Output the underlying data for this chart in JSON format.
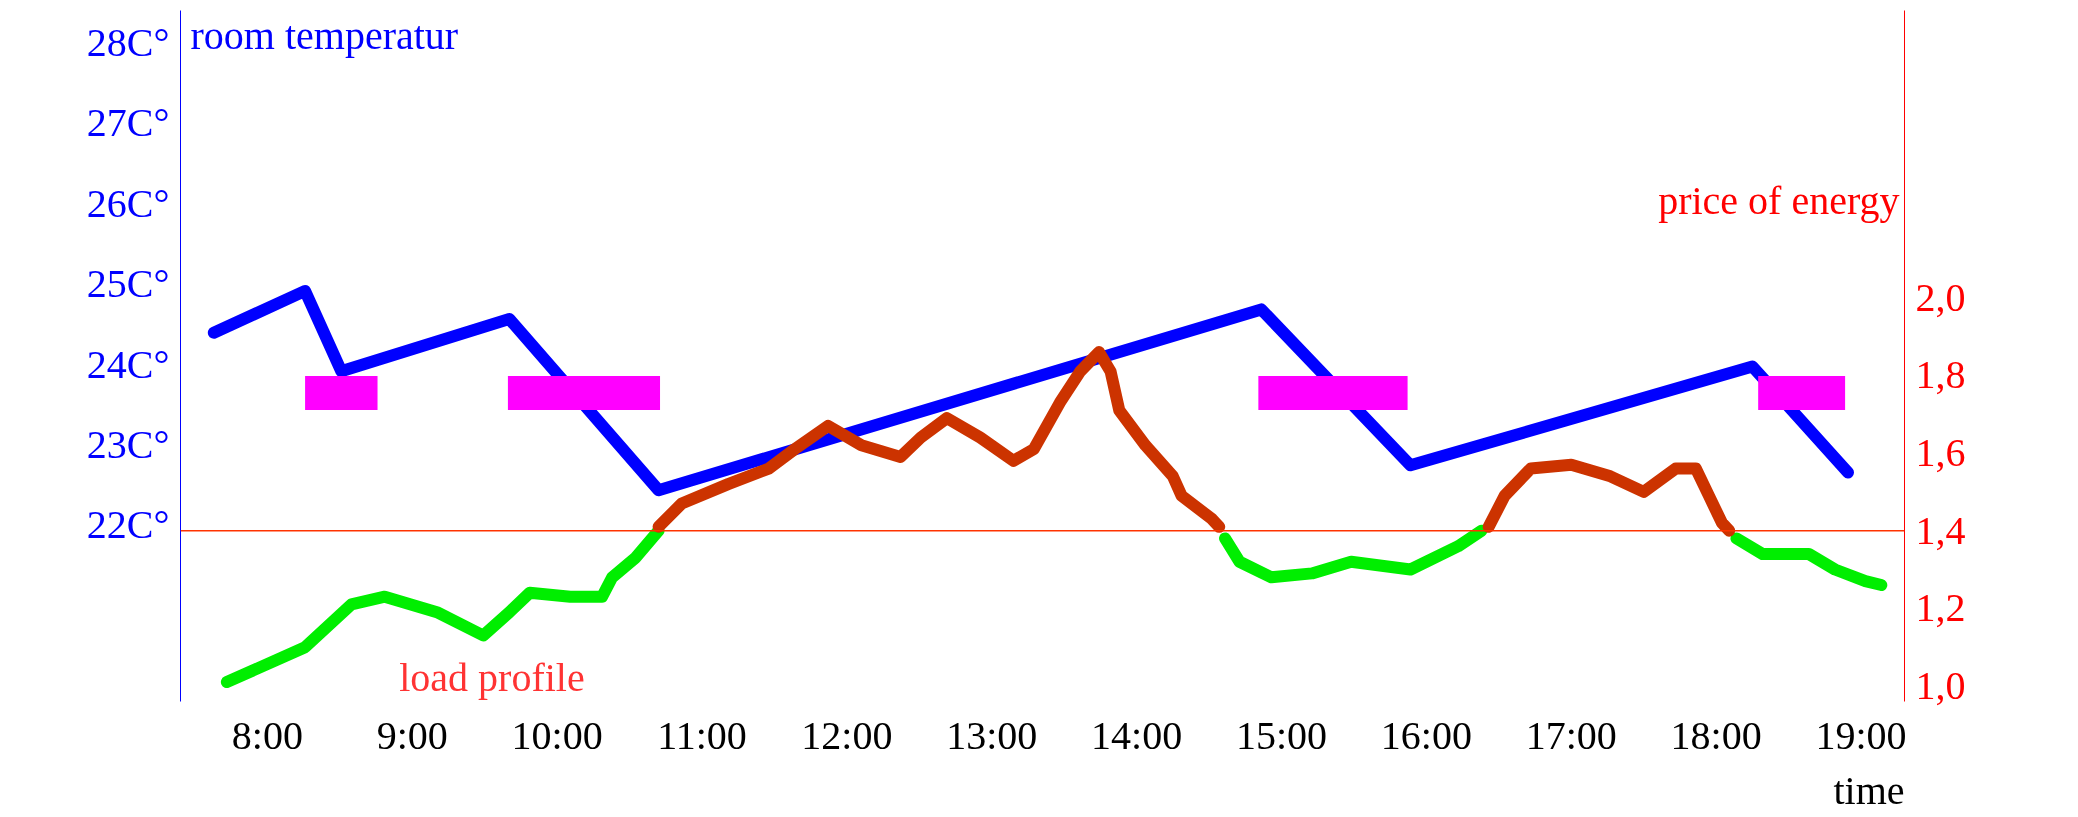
{
  "chart_data": {
    "type": "line",
    "ylabel": "room temperatur",
    "y2label": "price of energy",
    "xlabel": "time",
    "annotations": [
      "load profile"
    ],
    "xlim": [
      7.4,
      19.3
    ],
    "xticks": [
      {
        "value": 8,
        "label": "8:00"
      },
      {
        "value": 9,
        "label": "9:00"
      },
      {
        "value": 10,
        "label": "10:00"
      },
      {
        "value": 11,
        "label": "11:00"
      },
      {
        "value": 12,
        "label": "12:00"
      },
      {
        "value": 13,
        "label": "13:00"
      },
      {
        "value": 14,
        "label": "14:00"
      },
      {
        "value": 15,
        "label": "15:00"
      },
      {
        "value": 16,
        "label": "16:00"
      },
      {
        "value": 17,
        "label": "17:00"
      },
      {
        "value": 18,
        "label": "18:00"
      },
      {
        "value": 19,
        "label": "19:00"
      }
    ],
    "ylim": [
      19.8,
      28.4
    ],
    "yticks": [
      {
        "value": 22,
        "label": "22C°"
      },
      {
        "value": 23,
        "label": "23C°"
      },
      {
        "value": 24,
        "label": "24C°"
      },
      {
        "value": 25,
        "label": "25C°"
      },
      {
        "value": 26,
        "label": "26C°"
      },
      {
        "value": 27,
        "label": "27C°"
      },
      {
        "value": 28,
        "label": "28C°"
      }
    ],
    "y2lim": [
      0.96,
      2.74
    ],
    "y2ticks": [
      {
        "value": 1.0,
        "label": "1,0"
      },
      {
        "value": 1.2,
        "label": "1,2"
      },
      {
        "value": 1.4,
        "label": "1,4"
      },
      {
        "value": 1.6,
        "label": "1,6"
      },
      {
        "value": 1.8,
        "label": "1,8"
      },
      {
        "value": 2.0,
        "label": "2,0"
      }
    ],
    "grid": false,
    "ref_lines": [
      {
        "axis": "y2",
        "value": 1.4,
        "color": "#ff3300"
      }
    ],
    "series": [
      {
        "color": "#0000ff",
        "x": [
          7.63,
          8.26,
          8.51,
          9.67,
          10.7,
          14.86,
          15.89,
          18.25,
          18.91
        ],
        "values": [
          24.39,
          24.91,
          23.91,
          24.56,
          22.43,
          24.68,
          22.74,
          23.97,
          22.65
        ]
      },
      {
        "color": "#ff00ff",
        "x": [
          8.26,
          8.76,
          8.8,
          9.66,
          10.71,
          10.8,
          14.84,
          15.87,
          15.9,
          18.29,
          18.89
        ],
        "values": [
          23.64,
          23.64,
          null,
          23.64,
          23.64,
          null,
          23.64,
          23.64,
          null,
          23.64,
          23.64
        ]
      },
      {
        "axis": "y2",
        "color": "#00ee00",
        "x": [
          7.72,
          8.26,
          8.58,
          8.81,
          9.17,
          9.49,
          9.67,
          9.81,
          10.09,
          10.31,
          10.38,
          10.54,
          10.7,
          10.71,
          14.61,
          14.71,
          14.93,
          15.21,
          15.48,
          15.89,
          16.22,
          16.38,
          16.4,
          18.14,
          18.32,
          18.64,
          18.82,
          19.03,
          19.14
        ],
        "values": [
          1.01,
          1.1,
          1.21,
          1.23,
          1.19,
          1.13,
          1.19,
          1.24,
          1.23,
          1.23,
          1.28,
          1.33,
          1.4,
          null,
          1.38,
          1.32,
          1.28,
          1.29,
          1.32,
          1.3,
          1.36,
          1.4,
          null,
          1.38,
          1.34,
          1.34,
          1.3,
          1.27,
          1.26
        ]
      },
      {
        "axis": "y2",
        "color": "#cc3300",
        "x": [
          10.7,
          10.86,
          11.18,
          11.46,
          11.64,
          11.87,
          12.1,
          12.37,
          12.51,
          12.69,
          12.92,
          13.15,
          13.29,
          13.47,
          13.61,
          13.74,
          13.82,
          13.88,
          14.06,
          14.25,
          14.31,
          14.52,
          14.57,
          14.6,
          16.43,
          16.54,
          16.72,
          17.0,
          17.27,
          17.5,
          17.72,
          17.86,
          17.95,
          18.04,
          18.09
        ],
        "values": [
          1.41,
          1.47,
          1.52,
          1.56,
          1.61,
          1.67,
          1.62,
          1.59,
          1.64,
          1.69,
          1.64,
          1.58,
          1.61,
          1.73,
          1.81,
          1.86,
          1.81,
          1.71,
          1.62,
          1.54,
          1.49,
          1.43,
          1.41,
          null,
          1.41,
          1.49,
          1.56,
          1.57,
          1.54,
          1.5,
          1.56,
          1.56,
          1.49,
          1.42,
          1.4
        ]
      }
    ]
  }
}
